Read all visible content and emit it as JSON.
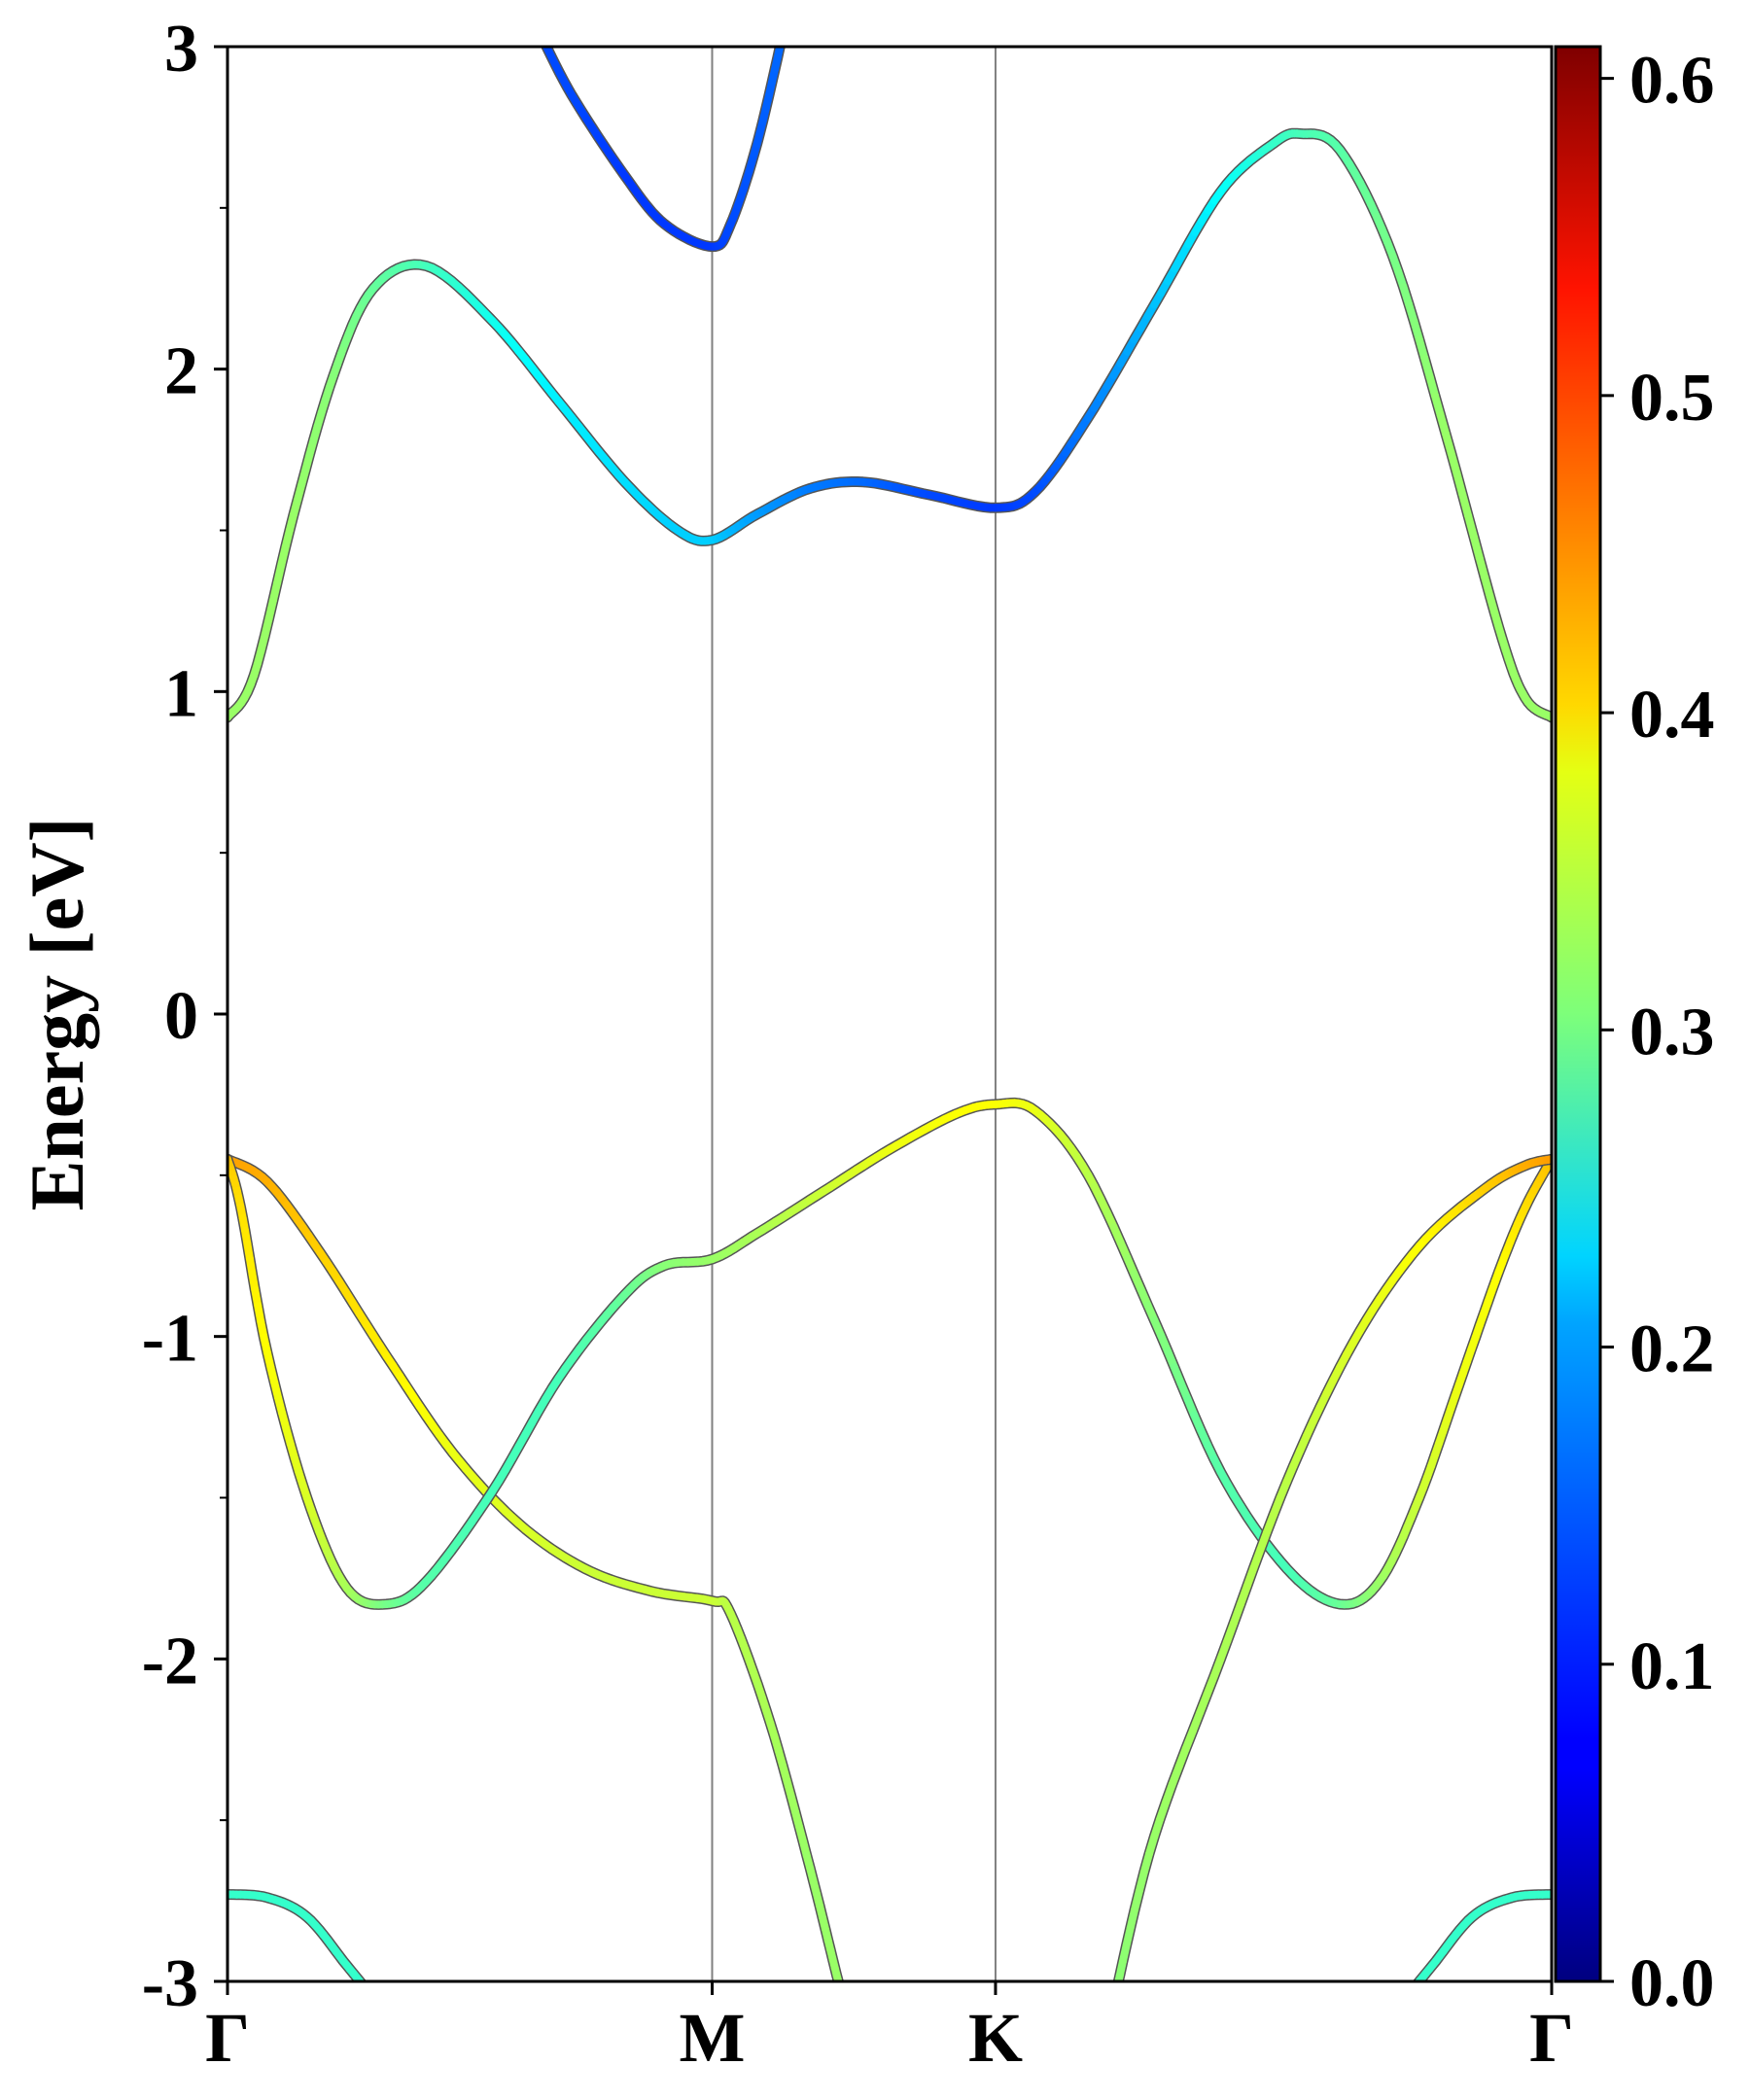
{
  "chart_data": {
    "type": "line",
    "title": "",
    "ylabel": "Energy [eV]",
    "xlabel": "",
    "ylim": [
      -3,
      3
    ],
    "xlim": [
      0,
      1
    ],
    "y_ticks": [
      -3,
      -2,
      -1,
      0,
      1,
      2,
      3
    ],
    "y_tick_labels": [
      "-3",
      "-2",
      "-1",
      "0",
      "1",
      "2",
      "3"
    ],
    "k_points": [
      {
        "label": "Γ",
        "x": 0.0
      },
      {
        "label": "M",
        "x": 0.366
      },
      {
        "label": "K",
        "x": 0.58
      },
      {
        "label": "Γ",
        "x": 1.0
      }
    ],
    "colorbar": {
      "colormap": "jet",
      "min": 0.0,
      "max": 0.61,
      "tick_values": [
        0.0,
        0.1,
        0.2,
        0.3,
        0.4,
        0.5,
        0.6
      ],
      "tick_labels": [
        "0.0",
        "0.1",
        "0.2",
        "0.3",
        "0.4",
        "0.5",
        "0.6"
      ]
    },
    "series": [
      {
        "points": [
          [
            0.0,
            -0.45,
            0.44
          ],
          [
            0.03,
            -0.52,
            0.43
          ],
          [
            0.07,
            -0.74,
            0.41
          ],
          [
            0.12,
            -1.06,
            0.39
          ],
          [
            0.17,
            -1.36,
            0.37
          ],
          [
            0.22,
            -1.58,
            0.36
          ],
          [
            0.27,
            -1.72,
            0.35
          ],
          [
            0.32,
            -1.79,
            0.35
          ],
          [
            0.366,
            -1.82,
            0.35
          ],
          [
            0.38,
            -1.86,
            0.34
          ],
          [
            0.41,
            -2.2,
            0.33
          ],
          [
            0.44,
            -2.65,
            0.32
          ],
          [
            0.46,
            -2.98,
            0.32
          ],
          [
            0.465,
            -3.05,
            0.32
          ]
        ]
      },
      {
        "points": [
          [
            0.0,
            -0.45,
            0.42
          ],
          [
            0.01,
            -0.6,
            0.4
          ],
          [
            0.03,
            -1.05,
            0.38
          ],
          [
            0.06,
            -1.5,
            0.36
          ],
          [
            0.09,
            -1.78,
            0.33
          ],
          [
            0.12,
            -1.83,
            0.3
          ],
          [
            0.15,
            -1.76,
            0.28
          ],
          [
            0.2,
            -1.48,
            0.27
          ],
          [
            0.25,
            -1.13,
            0.27
          ],
          [
            0.3,
            -0.87,
            0.29
          ],
          [
            0.33,
            -0.78,
            0.31
          ],
          [
            0.366,
            -0.76,
            0.32
          ],
          [
            0.4,
            -0.68,
            0.33
          ],
          [
            0.45,
            -0.55,
            0.35
          ],
          [
            0.5,
            -0.42,
            0.37
          ],
          [
            0.55,
            -0.31,
            0.38
          ],
          [
            0.58,
            -0.28,
            0.38
          ],
          [
            0.61,
            -0.3,
            0.37
          ],
          [
            0.65,
            -0.5,
            0.34
          ],
          [
            0.7,
            -0.95,
            0.31
          ],
          [
            0.75,
            -1.42,
            0.28
          ],
          [
            0.8,
            -1.72,
            0.27
          ],
          [
            0.84,
            -1.83,
            0.29
          ],
          [
            0.87,
            -1.76,
            0.32
          ],
          [
            0.9,
            -1.5,
            0.35
          ],
          [
            0.93,
            -1.15,
            0.37
          ],
          [
            0.96,
            -0.8,
            0.38
          ],
          [
            0.98,
            -0.6,
            0.4
          ],
          [
            1.0,
            -0.45,
            0.42
          ]
        ]
      },
      {
        "points": [
          [
            0.67,
            -3.05,
            0.31
          ],
          [
            0.7,
            -2.55,
            0.32
          ],
          [
            0.75,
            -2.0,
            0.33
          ],
          [
            0.8,
            -1.45,
            0.34
          ],
          [
            0.85,
            -1.02,
            0.36
          ],
          [
            0.9,
            -0.72,
            0.38
          ],
          [
            0.95,
            -0.54,
            0.41
          ],
          [
            0.98,
            -0.47,
            0.43
          ],
          [
            1.0,
            -0.45,
            0.44
          ]
        ]
      },
      {
        "points": [
          [
            0.0,
            0.92,
            0.32
          ],
          [
            0.02,
            1.05,
            0.32
          ],
          [
            0.05,
            1.55,
            0.32
          ],
          [
            0.08,
            1.98,
            0.31
          ],
          [
            0.11,
            2.25,
            0.29
          ],
          [
            0.15,
            2.32,
            0.27
          ],
          [
            0.2,
            2.15,
            0.24
          ],
          [
            0.25,
            1.9,
            0.22
          ],
          [
            0.3,
            1.65,
            0.21
          ],
          [
            0.34,
            1.5,
            0.2
          ],
          [
            0.366,
            1.47,
            0.2
          ],
          [
            0.4,
            1.55,
            0.17
          ],
          [
            0.44,
            1.63,
            0.15
          ],
          [
            0.48,
            1.65,
            0.14
          ],
          [
            0.53,
            1.61,
            0.12
          ],
          [
            0.58,
            1.57,
            0.11
          ],
          [
            0.61,
            1.62,
            0.12
          ],
          [
            0.65,
            1.85,
            0.15
          ],
          [
            0.7,
            2.2,
            0.19
          ],
          [
            0.75,
            2.55,
            0.23
          ],
          [
            0.79,
            2.7,
            0.26
          ],
          [
            0.81,
            2.73,
            0.27
          ],
          [
            0.84,
            2.68,
            0.28
          ],
          [
            0.88,
            2.35,
            0.3
          ],
          [
            0.92,
            1.8,
            0.32
          ],
          [
            0.96,
            1.2,
            0.32
          ],
          [
            0.98,
            0.98,
            0.32
          ],
          [
            1.0,
            0.92,
            0.32
          ]
        ]
      },
      {
        "points": [
          [
            0.235,
            3.05,
            0.12
          ],
          [
            0.26,
            2.85,
            0.12
          ],
          [
            0.3,
            2.6,
            0.11
          ],
          [
            0.33,
            2.45,
            0.11
          ],
          [
            0.366,
            2.38,
            0.11
          ],
          [
            0.38,
            2.45,
            0.12
          ],
          [
            0.4,
            2.7,
            0.13
          ],
          [
            0.42,
            3.05,
            0.14
          ]
        ]
      },
      {
        "points": [
          [
            0.0,
            -2.73,
            0.26
          ],
          [
            0.03,
            -2.74,
            0.26
          ],
          [
            0.06,
            -2.8,
            0.26
          ],
          [
            0.09,
            -2.95,
            0.26
          ],
          [
            0.11,
            -3.05,
            0.26
          ]
        ]
      },
      {
        "points": [
          [
            1.0,
            -2.73,
            0.26
          ],
          [
            0.97,
            -2.74,
            0.26
          ],
          [
            0.94,
            -2.8,
            0.26
          ],
          [
            0.91,
            -2.95,
            0.26
          ],
          [
            0.89,
            -3.05,
            0.26
          ]
        ]
      }
    ]
  }
}
